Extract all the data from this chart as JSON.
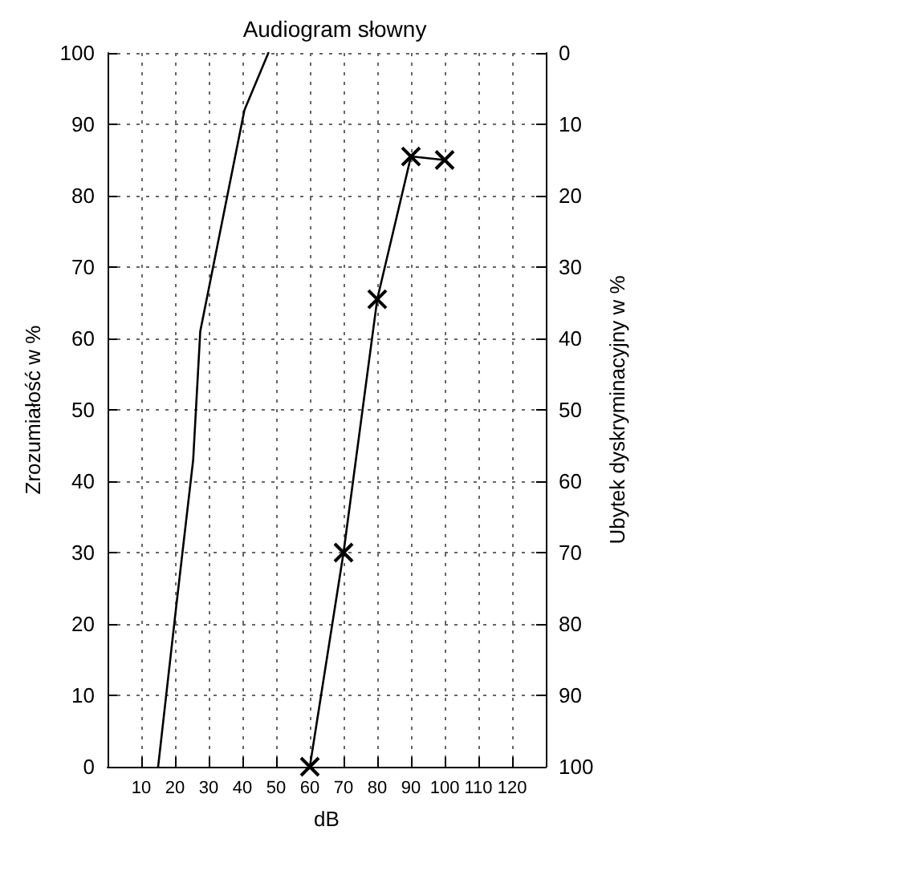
{
  "chart_data": {
    "type": "line",
    "title": "Audiogram słowny",
    "xlabel": "dB",
    "ylabel": "Zrozumiałość w %",
    "y2label": "Ubytek dyskryminacyjny w %",
    "xlim": [
      0,
      130
    ],
    "xticks": [
      {
        "value": 0,
        "label": null
      },
      10,
      20,
      30,
      40,
      50,
      60,
      70,
      80,
      90,
      100,
      110,
      120,
      {
        "value": 130,
        "label": null
      }
    ],
    "ylim": [
      0,
      100
    ],
    "yticks": [
      0,
      10,
      20,
      30,
      40,
      50,
      60,
      70,
      80,
      90,
      100
    ],
    "y2lim": [
      100,
      0
    ],
    "y2ticks": [
      0,
      10,
      20,
      30,
      40,
      50,
      60,
      70,
      80,
      90,
      100
    ],
    "grid": true,
    "series": [
      {
        "color": "#000000",
        "marker": "none",
        "x": [
          15,
          20.5,
          25.4,
          27.5,
          40.6,
          47.7
        ],
        "values": [
          0,
          23,
          43,
          61,
          92,
          100
        ]
      },
      {
        "color": "#000000",
        "marker": "cross",
        "x": [
          60,
          70,
          80,
          90,
          100
        ],
        "values": [
          0,
          30,
          65.5,
          85.5,
          85
        ]
      }
    ]
  }
}
